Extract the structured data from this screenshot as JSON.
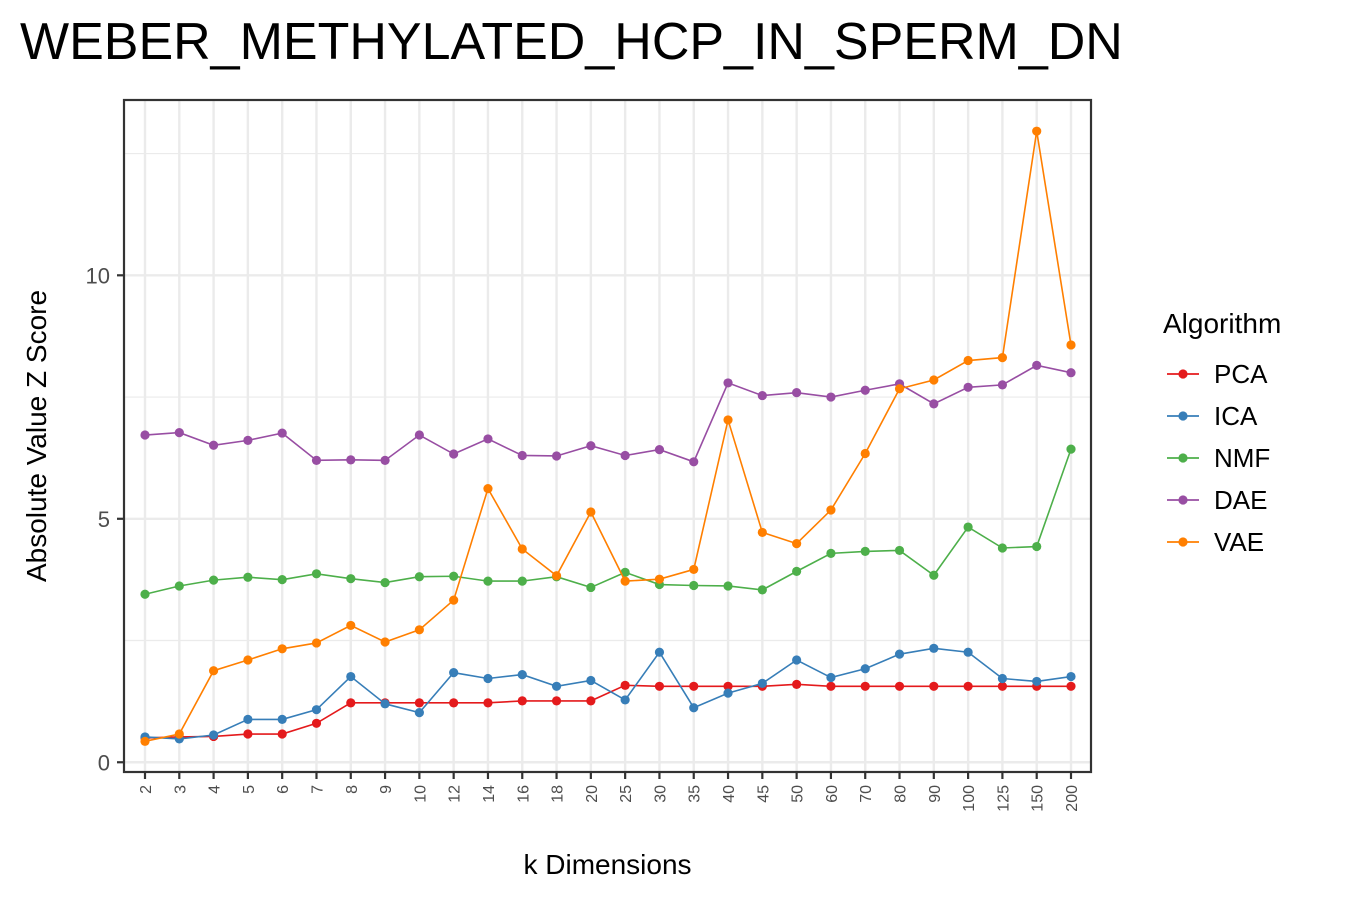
{
  "chart_data": {
    "type": "line",
    "title": "WEBER_METHYLATED_HCP_IN_SPERM_DN",
    "xlabel": "k Dimensions",
    "ylabel": "Absolute Value Z Score",
    "categories": [
      "2",
      "3",
      "4",
      "5",
      "6",
      "7",
      "8",
      "9",
      "10",
      "12",
      "14",
      "16",
      "18",
      "20",
      "25",
      "30",
      "35",
      "40",
      "45",
      "50",
      "60",
      "70",
      "80",
      "90",
      "100",
      "125",
      "150",
      "200"
    ],
    "ylim": [
      -0.2,
      13.6
    ],
    "yticks": [
      0,
      5,
      10
    ],
    "grid": true,
    "legend": {
      "title": "Algorithm",
      "position": "right"
    },
    "series": [
      {
        "name": "PCA",
        "color": "#e41a1c",
        "values": [
          0.5,
          0.52,
          0.53,
          0.58,
          0.58,
          0.8,
          1.22,
          1.22,
          1.22,
          1.22,
          1.22,
          1.26,
          1.26,
          1.26,
          1.58,
          1.56,
          1.56,
          1.56,
          1.56,
          1.6,
          1.56,
          1.56,
          1.56,
          1.56,
          1.56,
          1.56,
          1.56,
          1.56
        ]
      },
      {
        "name": "ICA",
        "color": "#377eb8",
        "values": [
          0.52,
          0.48,
          0.56,
          0.88,
          0.88,
          1.08,
          1.76,
          1.2,
          1.02,
          1.84,
          1.72,
          1.8,
          1.56,
          1.68,
          1.28,
          2.26,
          1.12,
          1.42,
          1.62,
          2.1,
          1.74,
          1.92,
          2.22,
          2.34,
          2.26,
          1.72,
          1.66,
          1.76
        ]
      },
      {
        "name": "NMF",
        "color": "#4daf4a",
        "values": [
          3.45,
          3.62,
          3.74,
          3.8,
          3.75,
          3.87,
          3.77,
          3.69,
          3.81,
          3.82,
          3.72,
          3.72,
          3.81,
          3.59,
          3.9,
          3.65,
          3.63,
          3.62,
          3.54,
          3.92,
          4.29,
          4.33,
          4.35,
          3.84,
          4.83,
          4.4,
          4.43,
          6.43
        ]
      },
      {
        "name": "DAE",
        "color": "#984ea3",
        "values": [
          6.72,
          6.77,
          6.51,
          6.61,
          6.76,
          6.2,
          6.21,
          6.2,
          6.72,
          6.33,
          6.64,
          6.3,
          6.29,
          6.5,
          6.3,
          6.42,
          6.17,
          7.79,
          7.53,
          7.59,
          7.5,
          7.64,
          7.77,
          7.36,
          7.7,
          7.75,
          8.15,
          8.0
        ]
      },
      {
        "name": "VAE",
        "color": "#ff7f00",
        "values": [
          0.43,
          0.58,
          1.88,
          2.1,
          2.33,
          2.45,
          2.81,
          2.47,
          2.72,
          3.33,
          5.62,
          4.38,
          3.83,
          5.14,
          3.72,
          3.76,
          3.96,
          7.03,
          4.72,
          4.49,
          5.18,
          6.34,
          7.67,
          7.85,
          8.25,
          8.31,
          12.96,
          8.57
        ]
      }
    ]
  }
}
